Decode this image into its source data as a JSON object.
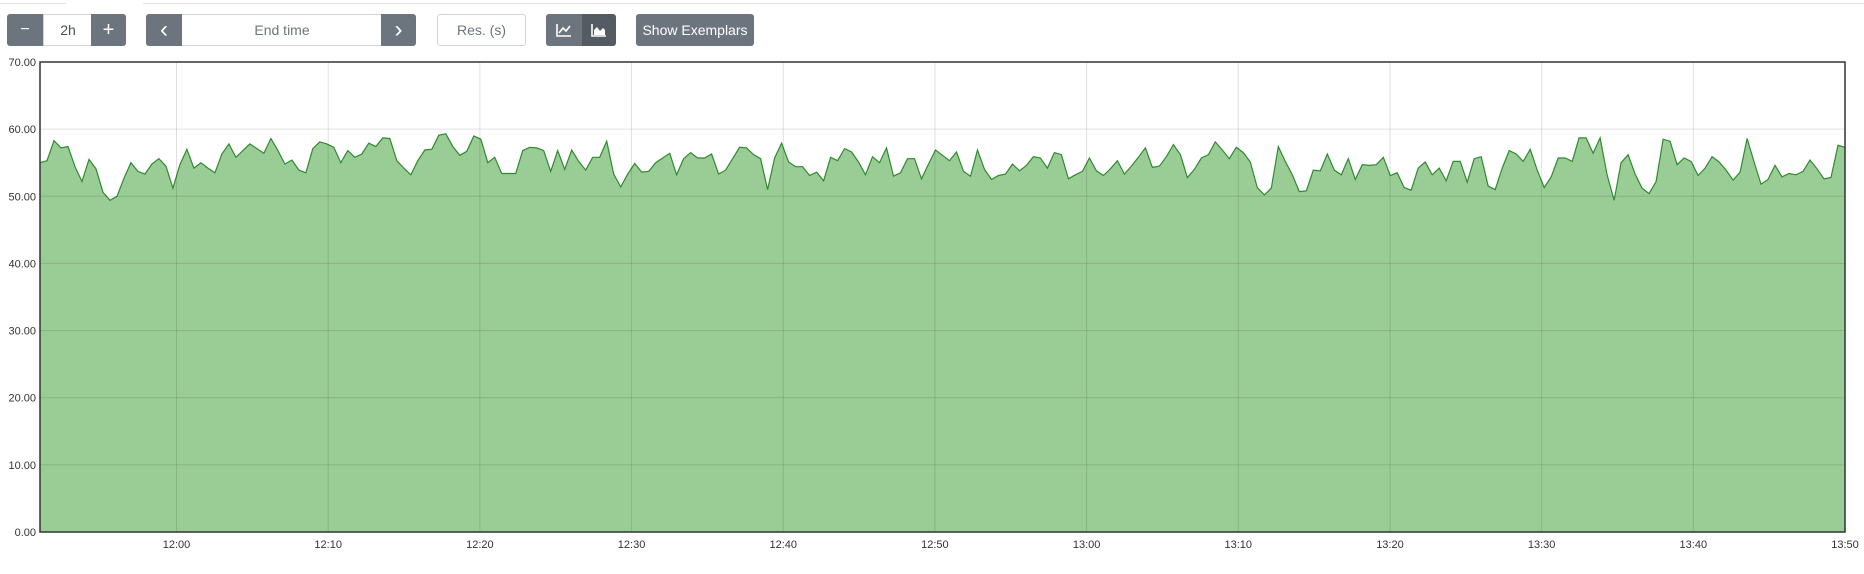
{
  "toolbar": {
    "range_minus": "−",
    "range_value": "2h",
    "range_plus": "+",
    "prev": "‹",
    "end_time_placeholder": "End time",
    "next": "›",
    "resolution_placeholder": "Res. (s)",
    "line_chart_icon": "line-chart-icon",
    "stacked_chart_icon": "area-chart-icon",
    "show_exemplars": "Show Exemplars"
  },
  "colors": {
    "area_fill": "#9acd95",
    "line": "#2e8b2e",
    "button": "#6c757d",
    "button_active": "#545b62"
  },
  "chart_data": {
    "type": "area",
    "ylim": [
      0,
      70
    ],
    "y_ticks": [
      "0.00",
      "10.00",
      "20.00",
      "30.00",
      "40.00",
      "50.00",
      "60.00",
      "70.00"
    ],
    "y_tick_values": [
      0,
      10,
      20,
      30,
      40,
      50,
      60,
      70
    ],
    "x_start": "11:51",
    "x_end": "13:50",
    "x_ticks": [
      "12:00",
      "12:10",
      "12:20",
      "12:30",
      "12:40",
      "12:50",
      "13:00",
      "13:10",
      "13:20",
      "13:30",
      "13:40",
      "13:50"
    ],
    "grid": true,
    "series": [
      {
        "values": [
          55.0,
          55.3,
          58.3,
          57.2,
          57.4,
          54.4,
          52.2,
          55.5,
          54.1,
          50.6,
          49.4,
          50.0,
          52.7,
          55.0,
          53.7,
          53.3,
          54.8,
          55.6,
          54.5,
          51.2,
          54.7,
          57.0,
          54.2,
          55.0,
          54.2,
          53.5,
          56.3,
          57.8,
          55.8,
          56.8,
          57.8,
          57.1,
          56.4,
          58.6,
          56.8,
          54.8,
          55.4,
          53.9,
          53.5,
          57.1,
          58.1,
          57.8,
          57.3,
          55.0,
          56.8,
          55.8,
          56.3,
          57.9,
          57.4,
          58.7,
          58.6,
          55.3,
          54.2,
          53.2,
          55.3,
          56.9,
          57.0,
          59.1,
          59.3,
          57.4,
          56.1,
          56.7,
          59.0,
          58.5,
          55.0,
          55.8,
          53.4,
          53.4,
          53.4,
          56.8,
          57.3,
          57.2,
          56.8,
          53.7,
          56.8,
          54.0,
          56.9,
          55.2,
          53.9,
          55.8,
          55.8,
          58.2,
          53.3,
          51.4,
          53.3,
          54.9,
          53.6,
          53.7,
          55.0,
          55.7,
          56.4,
          53.2,
          55.6,
          56.5,
          55.7,
          55.7,
          56.3,
          53.3,
          53.9,
          55.6,
          57.3,
          57.2,
          56.2,
          55.6,
          51.0,
          55.7,
          57.9,
          55.1,
          54.4,
          54.4,
          53.1,
          53.6,
          52.3,
          55.8,
          55.3,
          57.1,
          56.6,
          55.1,
          53.2,
          55.9,
          55.0,
          57.2,
          53.0,
          53.5,
          55.6,
          55.6,
          52.6,
          54.8,
          56.9,
          56.1,
          55.3,
          56.6,
          53.7,
          53.0,
          56.9,
          54.0,
          52.5,
          53.1,
          53.3,
          54.8,
          53.8,
          54.6,
          55.9,
          55.7,
          54.2,
          56.5,
          56.2,
          52.6,
          53.2,
          53.7,
          55.7,
          53.8,
          53.1,
          54.1,
          55.3,
          53.3,
          54.5,
          55.8,
          57.2,
          54.3,
          54.5,
          55.9,
          57.7,
          56.2,
          52.8,
          54.0,
          55.7,
          56.2,
          58.1,
          56.9,
          55.6,
          57.3,
          56.5,
          55.1,
          51.3,
          50.2,
          51.2,
          57.4,
          55.2,
          53.2,
          50.7,
          50.8,
          53.9,
          53.8,
          56.3,
          53.9,
          53.2,
          55.6,
          52.5,
          54.7,
          54.6,
          54.7,
          55.8,
          53.1,
          53.5,
          51.3,
          50.9,
          54.2,
          55.1,
          53.2,
          54.2,
          52.3,
          55.2,
          55.2,
          52.1,
          55.6,
          55.9,
          51.5,
          51.0,
          54.2,
          56.8,
          56.3,
          55.2,
          57.0,
          53.9,
          51.3,
          52.9,
          55.7,
          55.7,
          55.2,
          58.7,
          58.7,
          56.4,
          58.7,
          53.2,
          49.4,
          55.0,
          56.2,
          53.3,
          51.2,
          50.4,
          52.2,
          58.5,
          58.2,
          54.7,
          55.7,
          55.2,
          53.1,
          54.2,
          55.9,
          55.1,
          53.9,
          52.4,
          53.6,
          58.6,
          55.1,
          51.8,
          52.5,
          54.6,
          52.9,
          53.4,
          53.2,
          53.7,
          55.4,
          54.1,
          52.6,
          52.8,
          57.6,
          57.3
        ]
      }
    ]
  }
}
